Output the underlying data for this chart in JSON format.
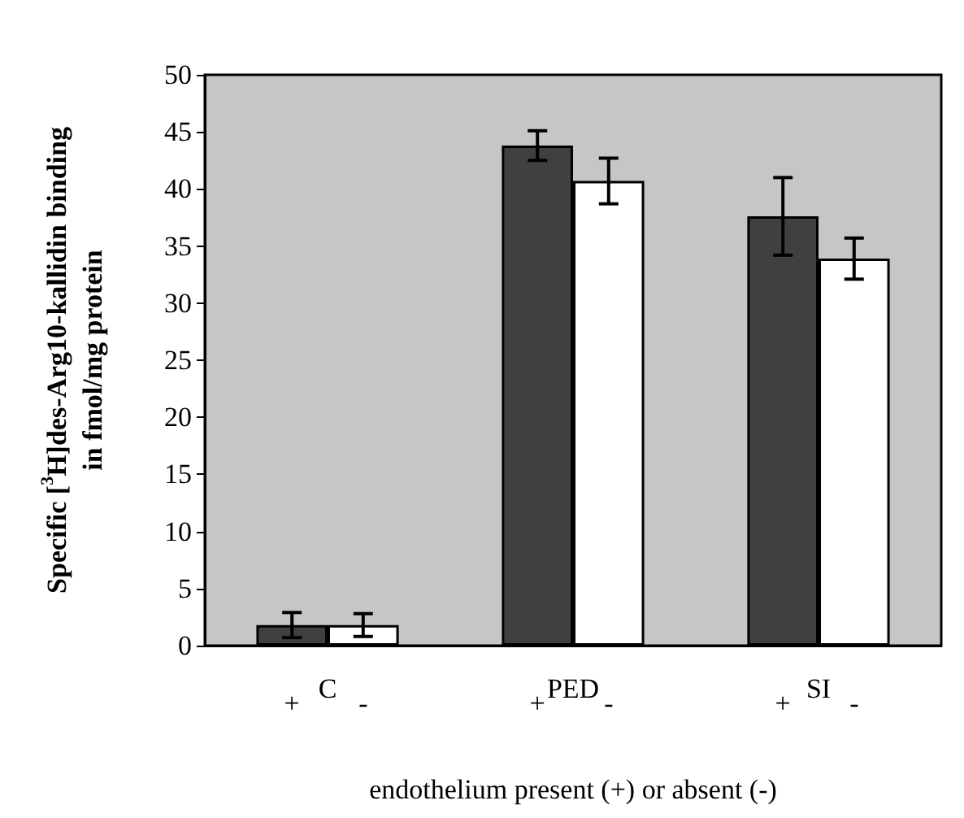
{
  "chart_data": {
    "type": "bar",
    "ylabel": "Specific [$^{3}$H]des-Arg10-kallidin binding in fmol/mg protein",
    "xlabel": "endothelium present (+) or absent (-)",
    "categories": [
      "C",
      "PED",
      "SI"
    ],
    "series": [
      {
        "name": "+",
        "color": "#404040",
        "values": [
          1.8,
          43.8,
          37.6
        ],
        "errors": [
          1.1,
          1.3,
          3.4
        ]
      },
      {
        "name": "-",
        "color": "#ffffff",
        "values": [
          1.8,
          40.7,
          33.9
        ],
        "errors": [
          1.0,
          2.0,
          1.8
        ]
      }
    ],
    "ylim": [
      0,
      50
    ],
    "yticks": [
      0,
      5,
      10,
      15,
      20,
      25,
      30,
      35,
      40,
      45,
      50
    ],
    "grid": false,
    "legend": false
  }
}
